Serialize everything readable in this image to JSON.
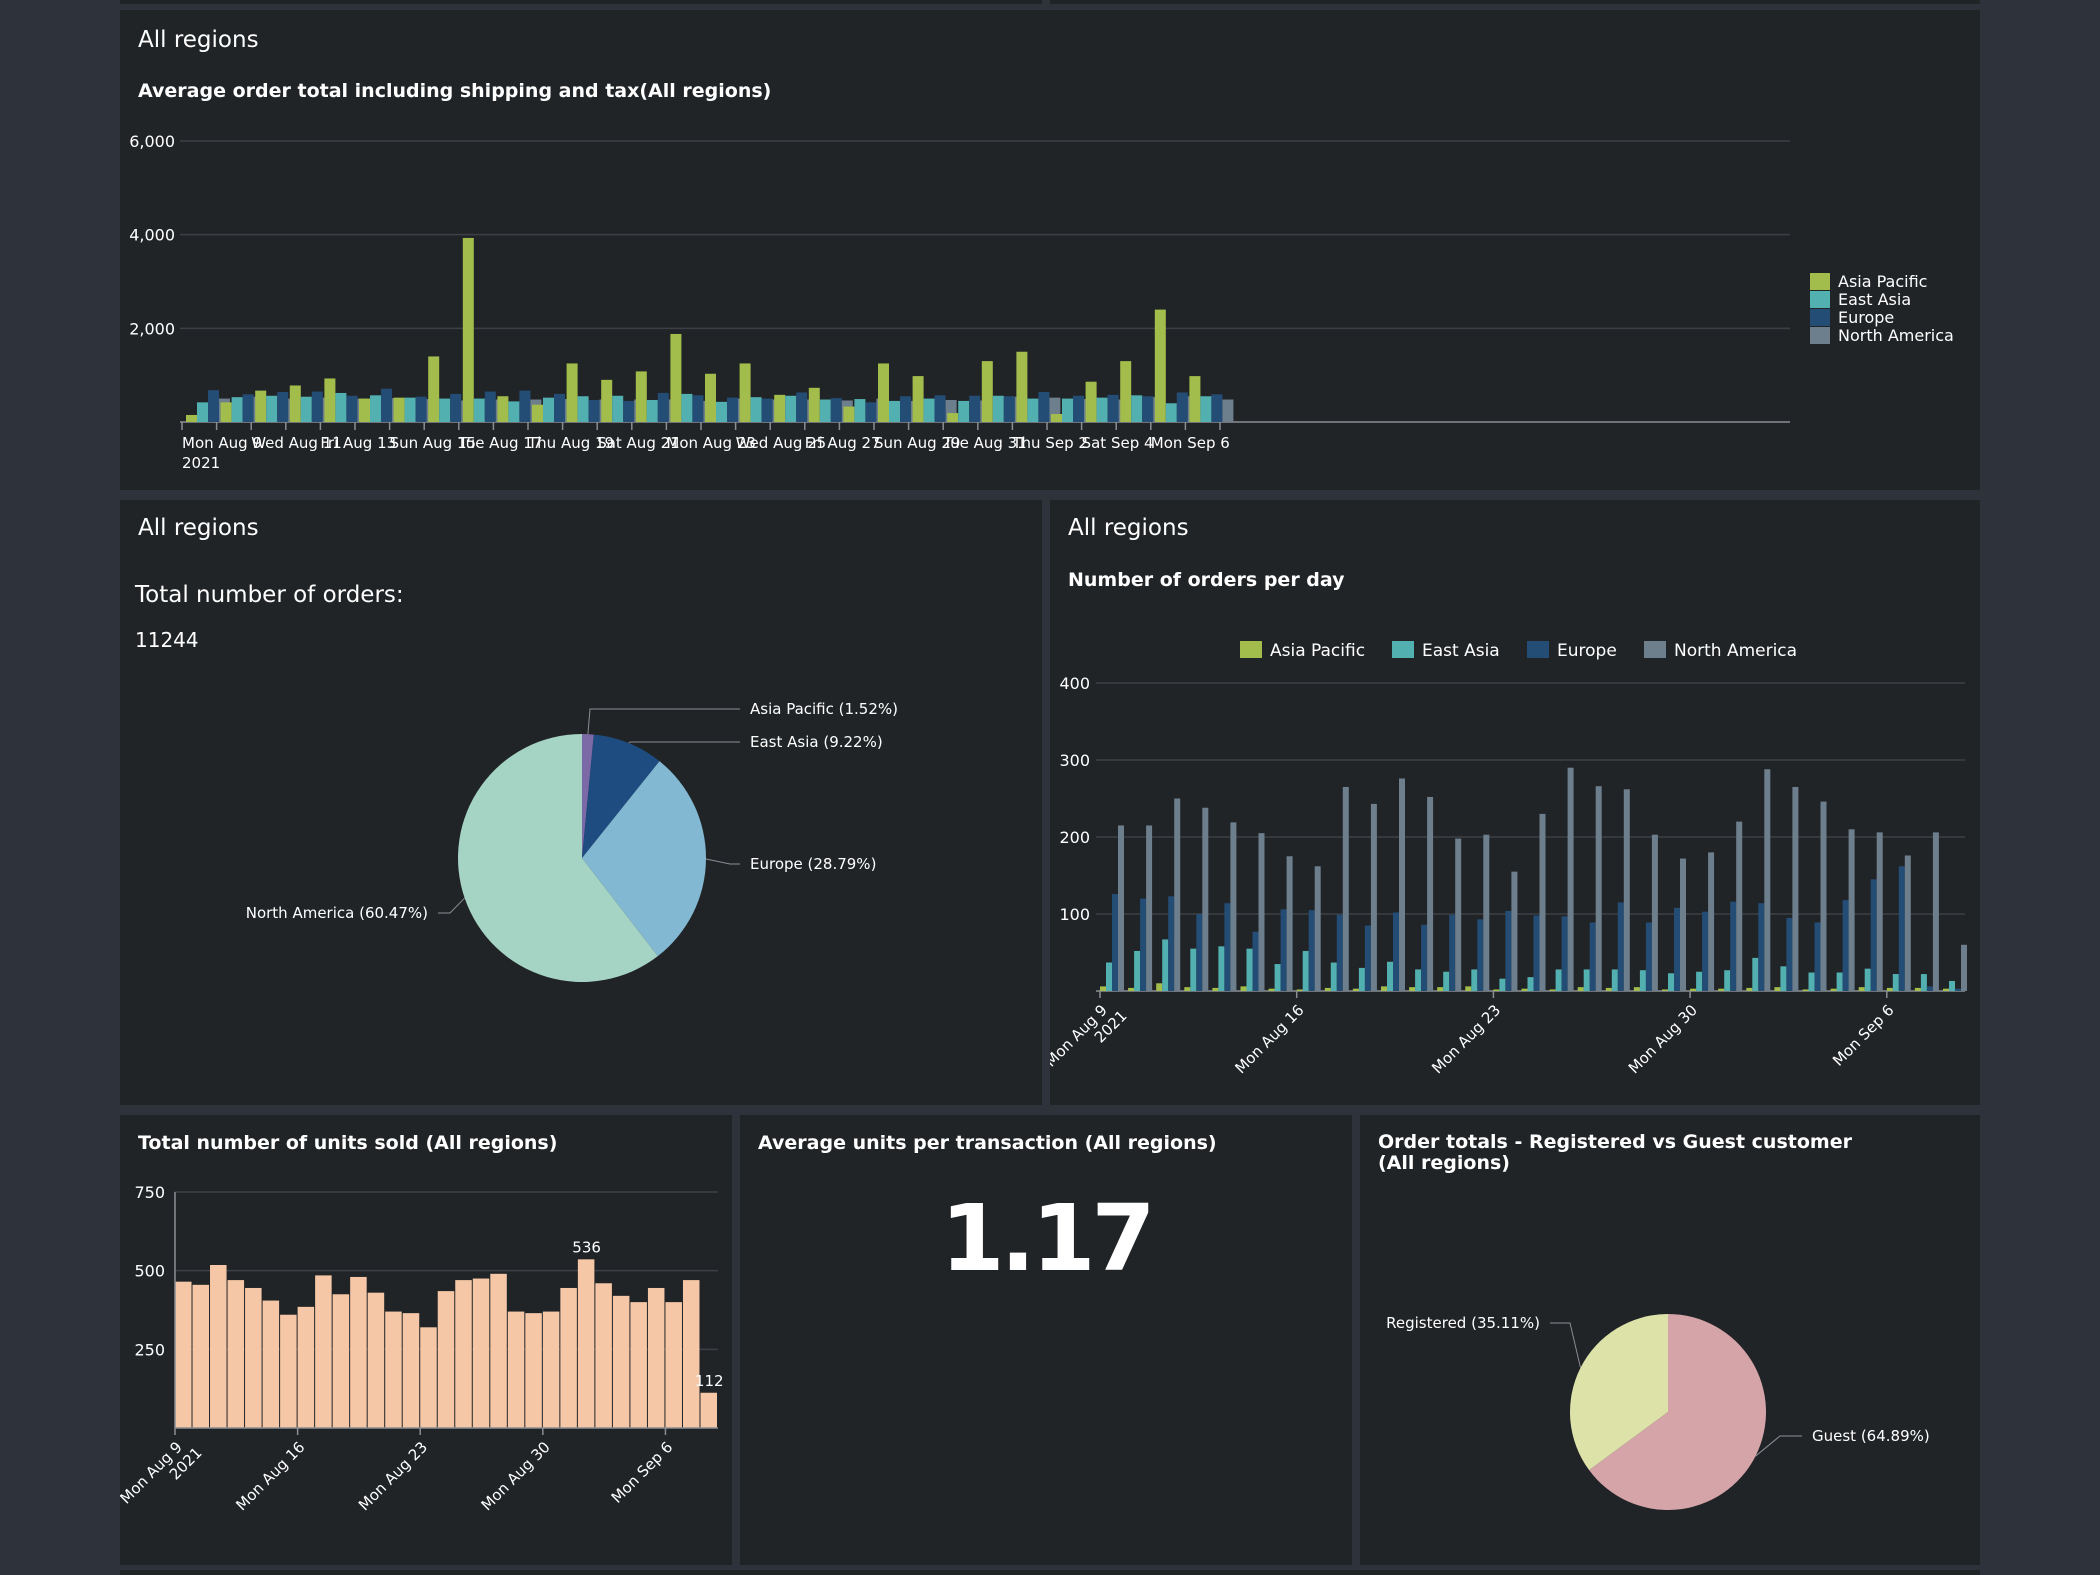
{
  "panels": {
    "top": {
      "title": "All regions",
      "chart_title": "Average order total including shipping and tax(All regions)"
    },
    "middle_left": {
      "title": "All regions",
      "label": "Total number of orders:",
      "value": "11244"
    },
    "middle_right": {
      "title": "All regions",
      "chart_title": "Number of orders per day"
    },
    "bottom_left": {
      "chart_title": "Total number of units sold (All regions)"
    },
    "bottom_center": {
      "chart_title": "Average units per transaction (All regions)",
      "value": "1.17"
    },
    "bottom_right": {
      "chart_title": "Order totals - Registered vs Guest customer (All regions)"
    }
  },
  "colors": {
    "Asia Pacific": "#a3bd4c",
    "East Asia": "#52b0b0",
    "Europe": "#244d75",
    "North America": "#6d7e8d",
    "pie_north_america": "#a6d4c4",
    "pie_europe": "#82b8d2",
    "pie_east_asia": "#1e4b80",
    "pie_asia_pacific": "#7b6aa5",
    "units_bar": "#f6c7a6",
    "registered": "#dde3a8",
    "guest": "#d4a4a9"
  },
  "chart_data": [
    {
      "id": "avg_order_total",
      "type": "bar",
      "title": "Average order total including shipping and tax(All regions)",
      "xlabel": "",
      "ylabel": "",
      "ylim": [
        0,
        6000
      ],
      "yticks": [
        "2,000",
        "4,000",
        "6,000"
      ],
      "ytick_values": [
        2000,
        4000,
        6000
      ],
      "x_tick_labels": [
        "Mon Aug 9",
        "Wed Aug 11",
        "Fri Aug 13",
        "Sun Aug 15",
        "Tue Aug 17",
        "Thu Aug 19",
        "Sat Aug 21",
        "Mon Aug 23",
        "Wed Aug 25",
        "Fri Aug 27",
        "Sun Aug 29",
        "Tue Aug 31",
        "Thu Sep 2",
        "Sat Sep 4",
        "Mon Sep 6"
      ],
      "x_tick_year": "2021",
      "legend": [
        "Asia Pacific",
        "East Asia",
        "Europe",
        "North America"
      ],
      "legend_position": "right",
      "series": [
        {
          "name": "Asia Pacific",
          "values": [
            150,
            420,
            670,
            780,
            930,
            500,
            520,
            1400,
            3930,
            550,
            370,
            1250,
            900,
            1080,
            1880,
            1030,
            1250,
            580,
            730,
            330,
            1250,
            980,
            190,
            1300,
            1500,
            170,
            860,
            1300,
            2400,
            980
          ]
        },
        {
          "name": "East Asia",
          "values": [
            420,
            530,
            560,
            540,
            620,
            570,
            520,
            500,
            500,
            440,
            520,
            550,
            560,
            470,
            600,
            430,
            530,
            560,
            480,
            490,
            450,
            500,
            450,
            560,
            500,
            500,
            520,
            570,
            400,
            550
          ]
        },
        {
          "name": "Europe",
          "values": [
            680,
            590,
            640,
            650,
            560,
            710,
            540,
            600,
            650,
            670,
            600,
            470,
            450,
            620,
            570,
            520,
            500,
            630,
            510,
            420,
            550,
            570,
            560,
            550,
            640,
            560,
            580,
            550,
            630,
            590
          ]
        },
        {
          "name": "North America",
          "values": [
            500,
            540,
            500,
            520,
            500,
            510,
            490,
            460,
            480,
            480,
            490,
            480,
            480,
            480,
            450,
            500,
            480,
            480,
            460,
            500,
            450,
            470,
            460,
            540,
            520,
            490,
            480,
            530,
            550,
            480
          ]
        }
      ]
    },
    {
      "id": "orders_by_region_pie",
      "type": "pie",
      "title": "Total number of orders:",
      "slices": [
        {
          "name": "Asia Pacific",
          "label": "Asia Pacific (1.52%)",
          "value": 1.52
        },
        {
          "name": "East Asia",
          "label": "East Asia (9.22%)",
          "value": 9.22
        },
        {
          "name": "Europe",
          "label": "Europe (28.79%)",
          "value": 28.79
        },
        {
          "name": "North America",
          "label": "North America (60.47%)",
          "value": 60.47
        }
      ]
    },
    {
      "id": "orders_per_day",
      "type": "bar",
      "title": "Number of orders per day",
      "ylim": [
        0,
        400
      ],
      "yticks": [
        "100",
        "200",
        "300",
        "400"
      ],
      "ytick_values": [
        100,
        200,
        300,
        400
      ],
      "x_tick_labels": [
        "Mon Aug 9\n2021",
        "Mon Aug 16",
        "Mon Aug 23",
        "Mon Aug 30",
        "Mon Sep 6"
      ],
      "x_tick_days": [
        0,
        7,
        14,
        21,
        28
      ],
      "legend": [
        "Asia Pacific",
        "East Asia",
        "Europe",
        "North America"
      ],
      "legend_position": "top",
      "series": [
        {
          "name": "Asia Pacific",
          "values": [
            6,
            4,
            10,
            5,
            4,
            6,
            3,
            2,
            4,
            3,
            6,
            5,
            5,
            6,
            2,
            3,
            2,
            5,
            4,
            5,
            2,
            3,
            3,
            4,
            5,
            2,
            3,
            5,
            4,
            4,
            3
          ]
        },
        {
          "name": "East Asia",
          "values": [
            37,
            52,
            67,
            55,
            58,
            55,
            35,
            52,
            37,
            30,
            38,
            28,
            25,
            28,
            16,
            18,
            28,
            28,
            28,
            27,
            23,
            25,
            27,
            43,
            32,
            24,
            24,
            29,
            22,
            22,
            13
          ]
        },
        {
          "name": "Europe",
          "values": [
            126,
            120,
            123,
            100,
            114,
            77,
            106,
            105,
            99,
            85,
            102,
            86,
            99,
            93,
            104,
            98,
            97,
            89,
            115,
            89,
            108,
            103,
            116,
            114,
            95,
            89,
            118,
            145,
            162,
            6,
            3
          ]
        },
        {
          "name": "North America",
          "values": [
            215,
            215,
            250,
            238,
            219,
            205,
            175,
            162,
            265,
            243,
            276,
            252,
            198,
            203,
            155,
            230,
            290,
            266,
            262,
            203,
            172,
            180,
            220,
            288,
            265,
            246,
            210,
            206,
            176,
            206,
            60
          ]
        }
      ]
    },
    {
      "id": "units_sold",
      "type": "bar",
      "title": "Total number of units sold (All regions)",
      "ylim": [
        0,
        750
      ],
      "yticks": [
        "250",
        "500",
        "750"
      ],
      "ytick_values": [
        250,
        500,
        750
      ],
      "x_tick_labels": [
        "Mon Aug 9\n2021",
        "Mon Aug 16",
        "Mon Aug 23",
        "Mon Aug 30",
        "Mon Sep 6"
      ],
      "x_tick_days": [
        0,
        7,
        14,
        21,
        28
      ],
      "values": [
        465,
        455,
        518,
        470,
        445,
        405,
        360,
        385,
        485,
        425,
        480,
        430,
        370,
        365,
        320,
        435,
        470,
        475,
        490,
        370,
        365,
        370,
        445,
        536,
        460,
        420,
        400,
        445,
        400,
        470,
        112
      ],
      "data_labels": [
        {
          "index": 23,
          "text": "536"
        },
        {
          "index": 30,
          "text": "112"
        }
      ]
    },
    {
      "id": "registered_vs_guest",
      "type": "pie",
      "title": "Order totals - Registered vs Guest customer (All regions)",
      "slices": [
        {
          "name": "Registered",
          "label": "Registered (35.11%)",
          "value": 35.11
        },
        {
          "name": "Guest",
          "label": "Guest (64.89%)",
          "value": 64.89
        }
      ]
    }
  ]
}
